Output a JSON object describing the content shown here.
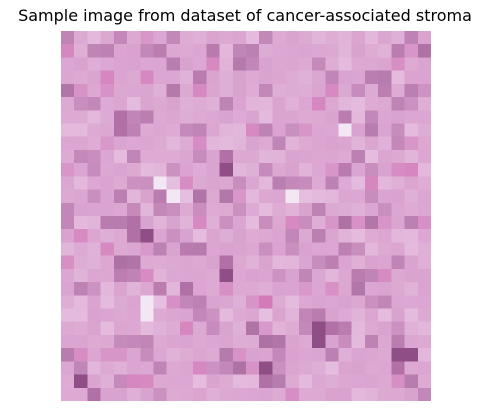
{
  "figure": {
    "title": "Sample image from dataset of cancer-associated stroma"
  },
  "image": {
    "grid": [
      28,
      28
    ],
    "palette": {
      "base": "#d9a2cf",
      "light": "#e6bfe0",
      "pale": "#f3e7f4",
      "dark": "#b171a6",
      "deep": "#8f4f86",
      "vivid": "#d57ab9"
    }
  }
}
